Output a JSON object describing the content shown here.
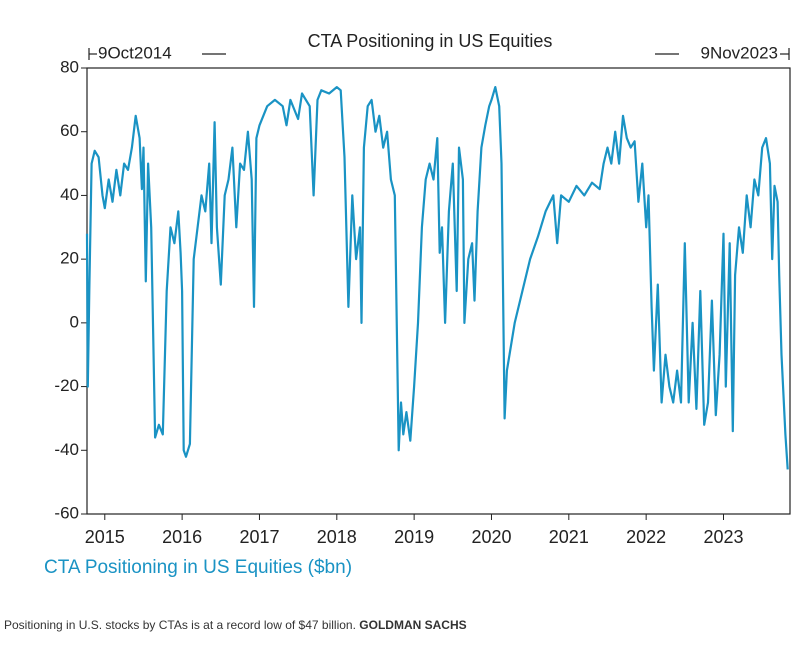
{
  "chart_data": {
    "type": "line",
    "title": "CTA Positioning in US Equities",
    "start_label": "9Oct2014",
    "end_label": "9Nov2023",
    "x": [
      2014.77,
      2014.78,
      2014.8,
      2014.83,
      2014.87,
      2014.92,
      2014.97,
      2015.0,
      2015.05,
      2015.1,
      2015.15,
      2015.2,
      2015.25,
      2015.3,
      2015.35,
      2015.4,
      2015.45,
      2015.48,
      2015.5,
      2015.53,
      2015.56,
      2015.6,
      2015.65,
      2015.7,
      2015.75,
      2015.8,
      2015.85,
      2015.9,
      2015.95,
      2015.98,
      2016.0,
      2016.02,
      2016.05,
      2016.1,
      2016.15,
      2016.2,
      2016.25,
      2016.3,
      2016.35,
      2016.38,
      2016.42,
      2016.45,
      2016.5,
      2016.55,
      2016.6,
      2016.65,
      2016.7,
      2016.75,
      2016.8,
      2016.85,
      2016.9,
      2016.93,
      2016.96,
      2017.0,
      2017.1,
      2017.2,
      2017.3,
      2017.35,
      2017.4,
      2017.5,
      2017.55,
      2017.65,
      2017.7,
      2017.75,
      2017.8,
      2017.9,
      2018.0,
      2018.05,
      2018.1,
      2018.15,
      2018.2,
      2018.25,
      2018.3,
      2018.32,
      2018.35,
      2018.4,
      2018.45,
      2018.5,
      2018.55,
      2018.6,
      2018.65,
      2018.7,
      2018.75,
      2018.8,
      2018.83,
      2018.86,
      2018.9,
      2018.95,
      2019.0,
      2019.05,
      2019.1,
      2019.15,
      2019.2,
      2019.25,
      2019.3,
      2019.33,
      2019.36,
      2019.4,
      2019.45,
      2019.5,
      2019.55,
      2019.58,
      2019.63,
      2019.65,
      2019.7,
      2019.75,
      2019.78,
      2019.82,
      2019.87,
      2019.92,
      2019.97,
      2020.0,
      2020.05,
      2020.1,
      2020.13,
      2020.17,
      2020.2,
      2020.3,
      2020.4,
      2020.5,
      2020.6,
      2020.7,
      2020.8,
      2020.85,
      2020.9,
      2021.0,
      2021.1,
      2021.2,
      2021.3,
      2021.4,
      2021.45,
      2021.5,
      2021.55,
      2021.6,
      2021.65,
      2021.7,
      2021.75,
      2021.8,
      2021.85,
      2021.9,
      2021.95,
      2022.0,
      2022.03,
      2022.07,
      2022.1,
      2022.15,
      2022.2,
      2022.25,
      2022.3,
      2022.35,
      2022.4,
      2022.45,
      2022.5,
      2022.55,
      2022.6,
      2022.65,
      2022.7,
      2022.75,
      2022.8,
      2022.85,
      2022.9,
      2022.95,
      2023.0,
      2023.03,
      2023.08,
      2023.12,
      2023.15,
      2023.2,
      2023.25,
      2023.3,
      2023.35,
      2023.4,
      2023.45,
      2023.5,
      2023.55,
      2023.6,
      2023.63,
      2023.66,
      2023.7,
      2023.72,
      2023.75,
      2023.8,
      2023.83
    ],
    "series": [
      {
        "name": "CTA Positioning in US Equities ($bn)",
        "color": "#1a93c4",
        "values": [
          28,
          -20,
          10,
          50,
          54,
          52,
          40,
          36,
          45,
          38,
          48,
          40,
          50,
          48,
          55,
          65,
          58,
          42,
          55,
          13,
          50,
          30,
          -36,
          -32,
          -35,
          10,
          30,
          25,
          35,
          22,
          10,
          -40,
          -42,
          -38,
          20,
          30,
          40,
          35,
          50,
          25,
          63,
          30,
          12,
          40,
          45,
          55,
          30,
          50,
          48,
          60,
          45,
          5,
          58,
          62,
          68,
          70,
          68,
          62,
          70,
          64,
          72,
          68,
          40,
          70,
          73,
          72,
          74,
          73,
          52,
          5,
          40,
          20,
          30,
          0,
          55,
          68,
          70,
          60,
          65,
          55,
          60,
          45,
          40,
          -40,
          -25,
          -35,
          -28,
          -37,
          -20,
          0,
          30,
          45,
          50,
          45,
          58,
          22,
          30,
          0,
          35,
          50,
          10,
          55,
          45,
          0,
          20,
          25,
          7,
          35,
          55,
          62,
          68,
          70,
          74,
          68,
          50,
          -30,
          -15,
          0,
          10,
          20,
          27,
          35,
          40,
          25,
          40,
          38,
          43,
          40,
          44,
          42,
          50,
          55,
          50,
          60,
          50,
          65,
          58,
          55,
          57,
          38,
          50,
          30,
          40,
          5,
          -15,
          12,
          -25,
          -10,
          -20,
          -25,
          -15,
          -25,
          25,
          -25,
          0,
          -27,
          10,
          -32,
          -25,
          7,
          -29,
          -10,
          28,
          -20,
          25,
          -34,
          15,
          30,
          22,
          40,
          30,
          45,
          40,
          55,
          58,
          50,
          20,
          43,
          38,
          15,
          -10,
          -35,
          -46
        ]
      }
    ],
    "xlim": [
      2014.77,
      2023.86
    ],
    "xticks": [
      2015,
      2016,
      2017,
      2018,
      2019,
      2020,
      2021,
      2022,
      2023
    ],
    "ylim": [
      -60,
      80
    ],
    "yticks": [
      80,
      60,
      40,
      20,
      0,
      -20,
      -40,
      -60
    ]
  },
  "caption": {
    "text": "Positioning in U.S. stocks by CTAs is at a record low of $47 billion.",
    "source": "GOLDMAN SACHS"
  }
}
